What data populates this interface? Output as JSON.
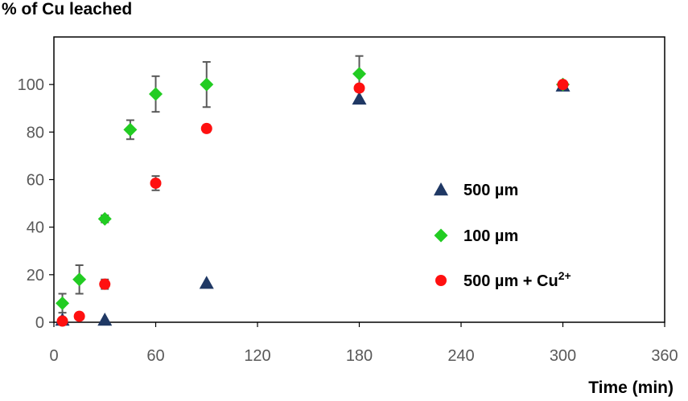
{
  "chart_data": {
    "type": "scatter",
    "title": "",
    "ylabel": "% of Cu leached",
    "xlabel": "Time (min)",
    "xlim": [
      0,
      360
    ],
    "ylim": [
      0,
      120
    ],
    "xticks": [
      0,
      60,
      120,
      180,
      240,
      300,
      360
    ],
    "yticks": [
      0,
      20,
      40,
      60,
      80,
      100
    ],
    "grid": false,
    "legend_position": "right",
    "series": [
      {
        "name": "500 µm",
        "name_sup": "",
        "marker": "triangle",
        "color": "#1F3864",
        "x": [
          5,
          30,
          90,
          180,
          300
        ],
        "y": [
          1,
          1,
          16.5,
          94,
          99.5
        ],
        "err": [
          null,
          null,
          null,
          null,
          null
        ]
      },
      {
        "name": "100 µm",
        "name_sup": "",
        "marker": "diamond",
        "color": "#22CC22",
        "x": [
          5,
          15,
          30,
          45,
          60,
          90,
          180,
          300
        ],
        "y": [
          8,
          18,
          43.5,
          81,
          96,
          100,
          104.5,
          100
        ],
        "err": [
          4,
          6,
          1.5,
          4,
          7.5,
          9.5,
          7.5,
          null
        ]
      },
      {
        "name": "500 µm + Cu",
        "name_sup": "2+",
        "marker": "circle",
        "color": "#FF1010",
        "x": [
          5,
          15,
          30,
          60,
          90,
          180,
          300
        ],
        "y": [
          0.5,
          2.5,
          16,
          58.5,
          81.5,
          98.5,
          100
        ],
        "err": [
          null,
          null,
          2,
          3,
          1.5,
          null,
          null
        ]
      }
    ]
  }
}
